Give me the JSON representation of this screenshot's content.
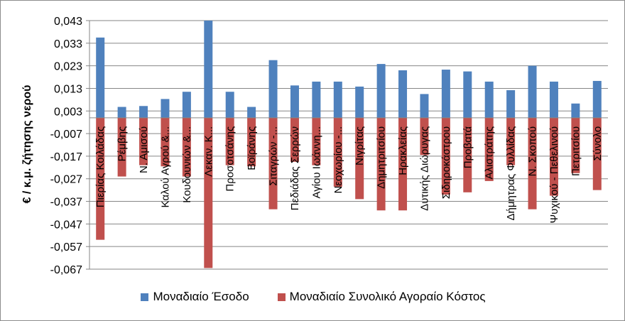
{
  "chart_data": {
    "type": "bar",
    "ylabel": "€ / κ.μ. ζήτησης νερού",
    "ylim": [
      -0.067,
      0.043
    ],
    "yticks": [
      0.043,
      0.033,
      0.023,
      0.013,
      0.003,
      -0.007,
      -0.017,
      -0.027,
      -0.037,
      -0.047,
      -0.057,
      -0.067
    ],
    "ytick_labels": [
      "0,043",
      "0,033",
      "0,023",
      "0,013",
      "0,003",
      "-0,007",
      "-0,017",
      "-0,027",
      "-0,037",
      "-0,047",
      "-0,057",
      "-0,067"
    ],
    "categories": [
      "Πιερίας Κοιλάδας",
      "Ρέμβης",
      "Ν. Αμισού",
      "Καλού Αγρού &...",
      "Κουδουνιών &...",
      "Λεκαν. Κ...",
      "Προσοτσάνης",
      "Βοϊράνης",
      "Σιταγρών -...",
      "Πεδιάδας Σερρών",
      "Αγίου Ιωάννη...",
      "Νεοχωρίου -...",
      "Νιγρίτας",
      "Δημητριτσίου",
      "Ηρακλείας",
      "Δυτικής Διώρυγας",
      "Σιδηροκάστρου",
      "Προβατά",
      "Αλιστράτης",
      "Δήμητρας Φυλλίδας",
      "Ν. Σκοπού",
      "Ψυχικού - Πεθελινού",
      "Πετριτσίου",
      "Σύνολο"
    ],
    "series": [
      {
        "name": "Μοναδιαίο Έσοδο",
        "color": "#4f81bd",
        "values": [
          0.0355,
          0.0048,
          0.0052,
          0.0083,
          0.0115,
          0.043,
          0.0115,
          0.0048,
          0.0255,
          0.0143,
          0.016,
          0.016,
          0.0138,
          0.0238,
          0.021,
          0.0105,
          0.0213,
          0.0205,
          0.016,
          0.0122,
          0.023,
          0.016,
          0.0063,
          0.0163
        ]
      },
      {
        "name": "Μοναδιαίο Συνολικό Αγοραίο Κόστος",
        "color": "#c0504d",
        "values": [
          -0.054,
          -0.026,
          -0.021,
          -0.0215,
          -0.026,
          -0.0665,
          -0.021,
          -0.0215,
          -0.0405,
          -0.0195,
          -0.021,
          -0.0305,
          -0.036,
          -0.041,
          -0.041,
          -0.0165,
          -0.034,
          -0.033,
          -0.028,
          -0.021,
          -0.0405,
          -0.0345,
          -0.0245,
          -0.032
        ]
      }
    ],
    "grid": true,
    "legend_position": "bottom"
  },
  "legend": {
    "items": [
      {
        "label": "Μοναδιαίο Έσοδο",
        "color": "#4f81bd"
      },
      {
        "label": "Μοναδιαίο Συνολικό Αγοραίο Κόστος",
        "color": "#c0504d"
      }
    ]
  }
}
